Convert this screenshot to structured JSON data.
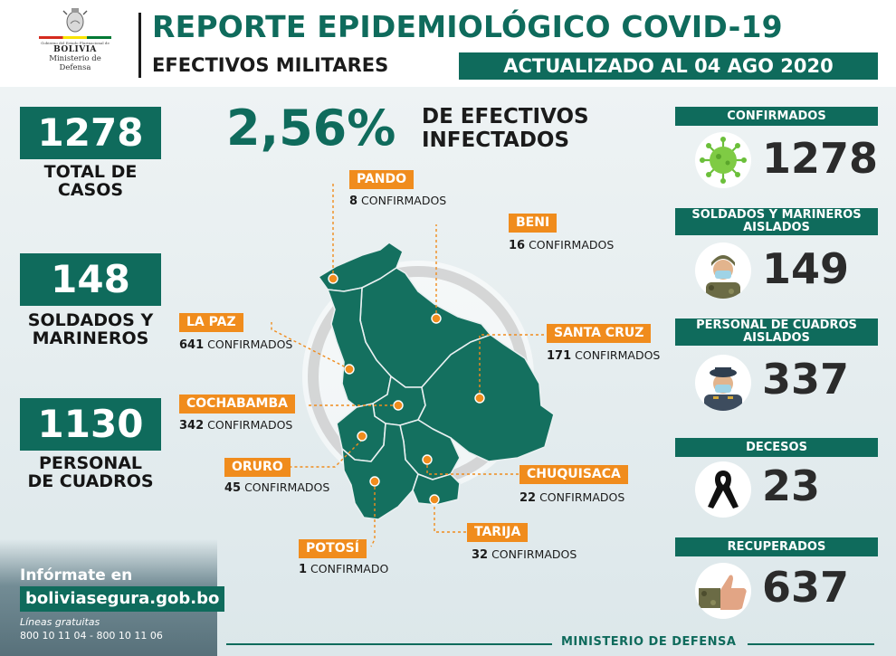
{
  "header": {
    "logo_top": "Gobierno del Estado Plurinacional de",
    "logo_name": "BOLIVIA",
    "logo_ministry": "Ministerio de",
    "logo_ministry2": "Defensa",
    "title": "REPORTE EPIDEMIOLÓGICO COVID-19",
    "subtitle": "EFECTIVOS MILITARES",
    "updated": "ACTUALIZADO AL 04 AGO 2020"
  },
  "left_stats": [
    {
      "value": "1278",
      "label_1": "TOTAL DE",
      "label_2": "CASOS"
    },
    {
      "value": "148",
      "label_1": "SOLDADOS Y",
      "label_2": "MARINEROS"
    },
    {
      "value": "1130",
      "label_1": "PERSONAL",
      "label_2": "DE CUADROS"
    }
  ],
  "center": {
    "percent": "2,56%",
    "percent_label_1": "DE EFECTIVOS",
    "percent_label_2": "INFECTADOS"
  },
  "departments": [
    {
      "name": "PANDO",
      "count": "8",
      "suffix": "CONFIRMADOS"
    },
    {
      "name": "BENI",
      "count": "16",
      "suffix": "CONFIRMADOS"
    },
    {
      "name": "LA PAZ",
      "count": "641",
      "suffix": "CONFIRMADOS"
    },
    {
      "name": "SANTA CRUZ",
      "count": "171",
      "suffix": "CONFIRMADOS"
    },
    {
      "name": "COCHABAMBA",
      "count": "342",
      "suffix": "CONFIRMADOS"
    },
    {
      "name": "ORURO",
      "count": "45",
      "suffix": "CONFIRMADOS"
    },
    {
      "name": "CHUQUISACA",
      "count": "22",
      "suffix": "CONFIRMADOS"
    },
    {
      "name": "TARIJA",
      "count": "32",
      "suffix": "CONFIRMADOS"
    },
    {
      "name": "POTOSÍ",
      "count": "1",
      "suffix": "CONFIRMADO"
    }
  ],
  "right_stats": [
    {
      "head": "CONFIRMADOS",
      "value": "1278",
      "icon": "virus-icon"
    },
    {
      "head_1": "SOLDADOS Y MARINEROS",
      "head_2": "AISLADOS",
      "value": "149",
      "icon": "soldier-icon"
    },
    {
      "head_1": "PERSONAL DE CUADROS",
      "head_2": "AISLADOS",
      "value": "337",
      "icon": "officer-icon"
    },
    {
      "head": "DECESOS",
      "value": "23",
      "icon": "mourning-ribbon-icon"
    },
    {
      "head": "RECUPERADOS",
      "value": "637",
      "icon": "thumbs-up-icon"
    }
  ],
  "footer": {
    "info": "Infórmate en",
    "url": "boliviasegura.gob.bo",
    "lines_label": "Líneas gratuitas",
    "phones": "800 10 11 04 - 800 10 11 06",
    "ministry": "MINISTERIO DE DEFENSA"
  },
  "colors": {
    "primary": "#0f6b5c",
    "accent": "#f08c1d",
    "text": "#1b1b1b"
  }
}
